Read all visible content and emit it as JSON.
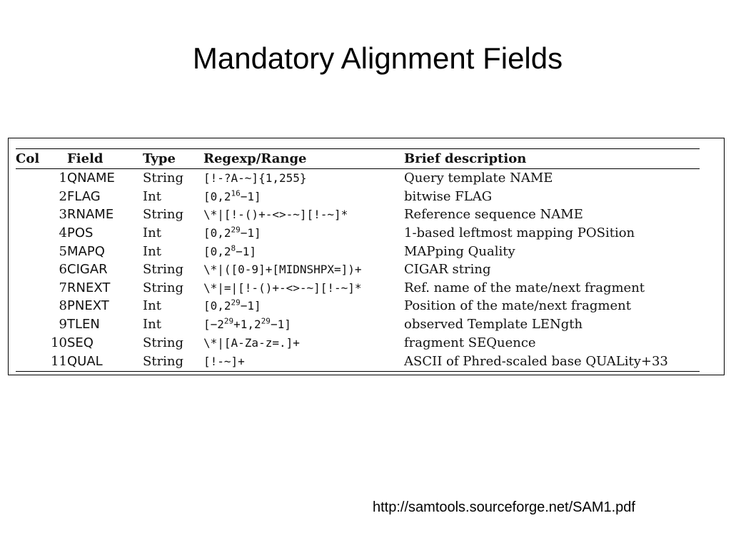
{
  "slide": {
    "title": "Mandatory Alignment Fields",
    "source_url": "http://samtools.sourceforge.net/SAM1.pdf"
  },
  "table": {
    "headers": {
      "col": "Col",
      "field": "Field",
      "type": "Type",
      "regexp": "Regexp/Range",
      "description": "Brief description"
    },
    "rows": [
      {
        "col": "1",
        "field": "QNAME",
        "type": "String",
        "regexp": "[!-?A-~]{1,255}",
        "description": "Query template NAME"
      },
      {
        "col": "2",
        "field": "FLAG",
        "type": "Int",
        "regexp_base": "[0,2",
        "regexp_sup": "16",
        "regexp_tail": "−1]",
        "description": "bitwise FLAG"
      },
      {
        "col": "3",
        "field": "RNAME",
        "type": "String",
        "regexp": "\\*|[!-()+-<>-~][!-~]*",
        "description": "Reference sequence NAME"
      },
      {
        "col": "4",
        "field": "POS",
        "type": "Int",
        "regexp_base": "[0,2",
        "regexp_sup": "29",
        "regexp_tail": "−1]",
        "description": "1-based leftmost mapping POSition"
      },
      {
        "col": "5",
        "field": "MAPQ",
        "type": "Int",
        "regexp_base": "[0,2",
        "regexp_sup": "8",
        "regexp_tail": "−1]",
        "description": "MAPping Quality"
      },
      {
        "col": "6",
        "field": "CIGAR",
        "type": "String",
        "regexp": "\\*|([0-9]+[MIDNSHPX=])+",
        "description": "CIGAR string"
      },
      {
        "col": "7",
        "field": "RNEXT",
        "type": "String",
        "regexp": "\\*|=|[!-()+-<>-~][!-~]*",
        "description": "Ref. name of the mate/next fragment"
      },
      {
        "col": "8",
        "field": "PNEXT",
        "type": "Int",
        "regexp_base": "[0,2",
        "regexp_sup": "29",
        "regexp_tail": "−1]",
        "description": "Position of the mate/next fragment"
      },
      {
        "col": "9",
        "field": "TLEN",
        "type": "Int",
        "regexp_base": "[−2",
        "regexp_sup": "29",
        "regexp_mid": "+1,2",
        "regexp_sup2": "29",
        "regexp_tail": "−1]",
        "description": "observed Template LENgth"
      },
      {
        "col": "10",
        "field": "SEQ",
        "type": "String",
        "regexp": "\\*|[A-Za-z=.]+",
        "description": "fragment SEQuence"
      },
      {
        "col": "11",
        "field": "QUAL",
        "type": "String",
        "regexp": "[!-~]+",
        "description": "ASCII of Phred-scaled base QUALity+33"
      }
    ]
  }
}
